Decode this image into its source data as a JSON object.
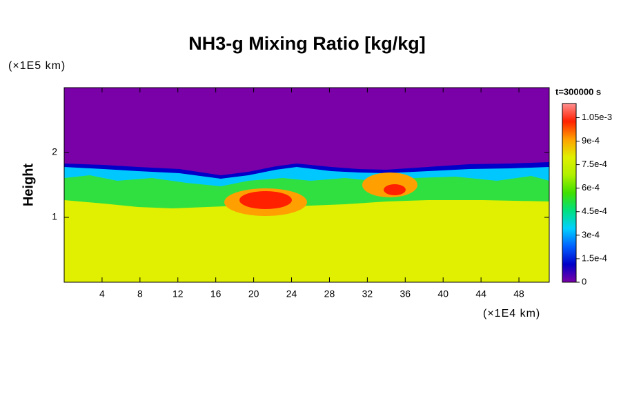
{
  "chart_data": {
    "type": "heatmap",
    "title": "NH3-g Mixing Ratio [kg/kg]",
    "xlabel": "(×1E4 km)",
    "ylabel": "Height",
    "y_unit_label": "(×1E5 km)",
    "annotation": "t=300000 s",
    "xlim": [
      0,
      51.2
    ],
    "xticks": [
      4,
      8,
      12,
      16,
      20,
      24,
      28,
      32,
      36,
      40,
      44,
      48
    ],
    "ylim": [
      0,
      3
    ],
    "yticks": [
      1,
      2
    ],
    "colorbar": {
      "lim": [
        0,
        0.00114
      ],
      "ticks": [
        0,
        {
          "value": 0.00015,
          "label": "1.5e-4"
        },
        {
          "value": 0.0003,
          "label": "3e-4"
        },
        {
          "value": 0.00045,
          "label": "4.5e-4"
        },
        {
          "value": 0.0006,
          "label": "6e-4"
        },
        {
          "value": 0.00075,
          "label": "7.5e-4"
        },
        {
          "value": 0.0009,
          "label": "9e-4"
        },
        {
          "value": 0.00105,
          "label": "1.05e-3"
        }
      ],
      "colors": [
        "#7a00a8",
        "#0000c8",
        "#0060ff",
        "#00d0ff",
        "#00e080",
        "#40e000",
        "#b0f000",
        "#e0f000",
        "#ffa000",
        "#ff2000",
        "#ff9090"
      ]
    }
  }
}
